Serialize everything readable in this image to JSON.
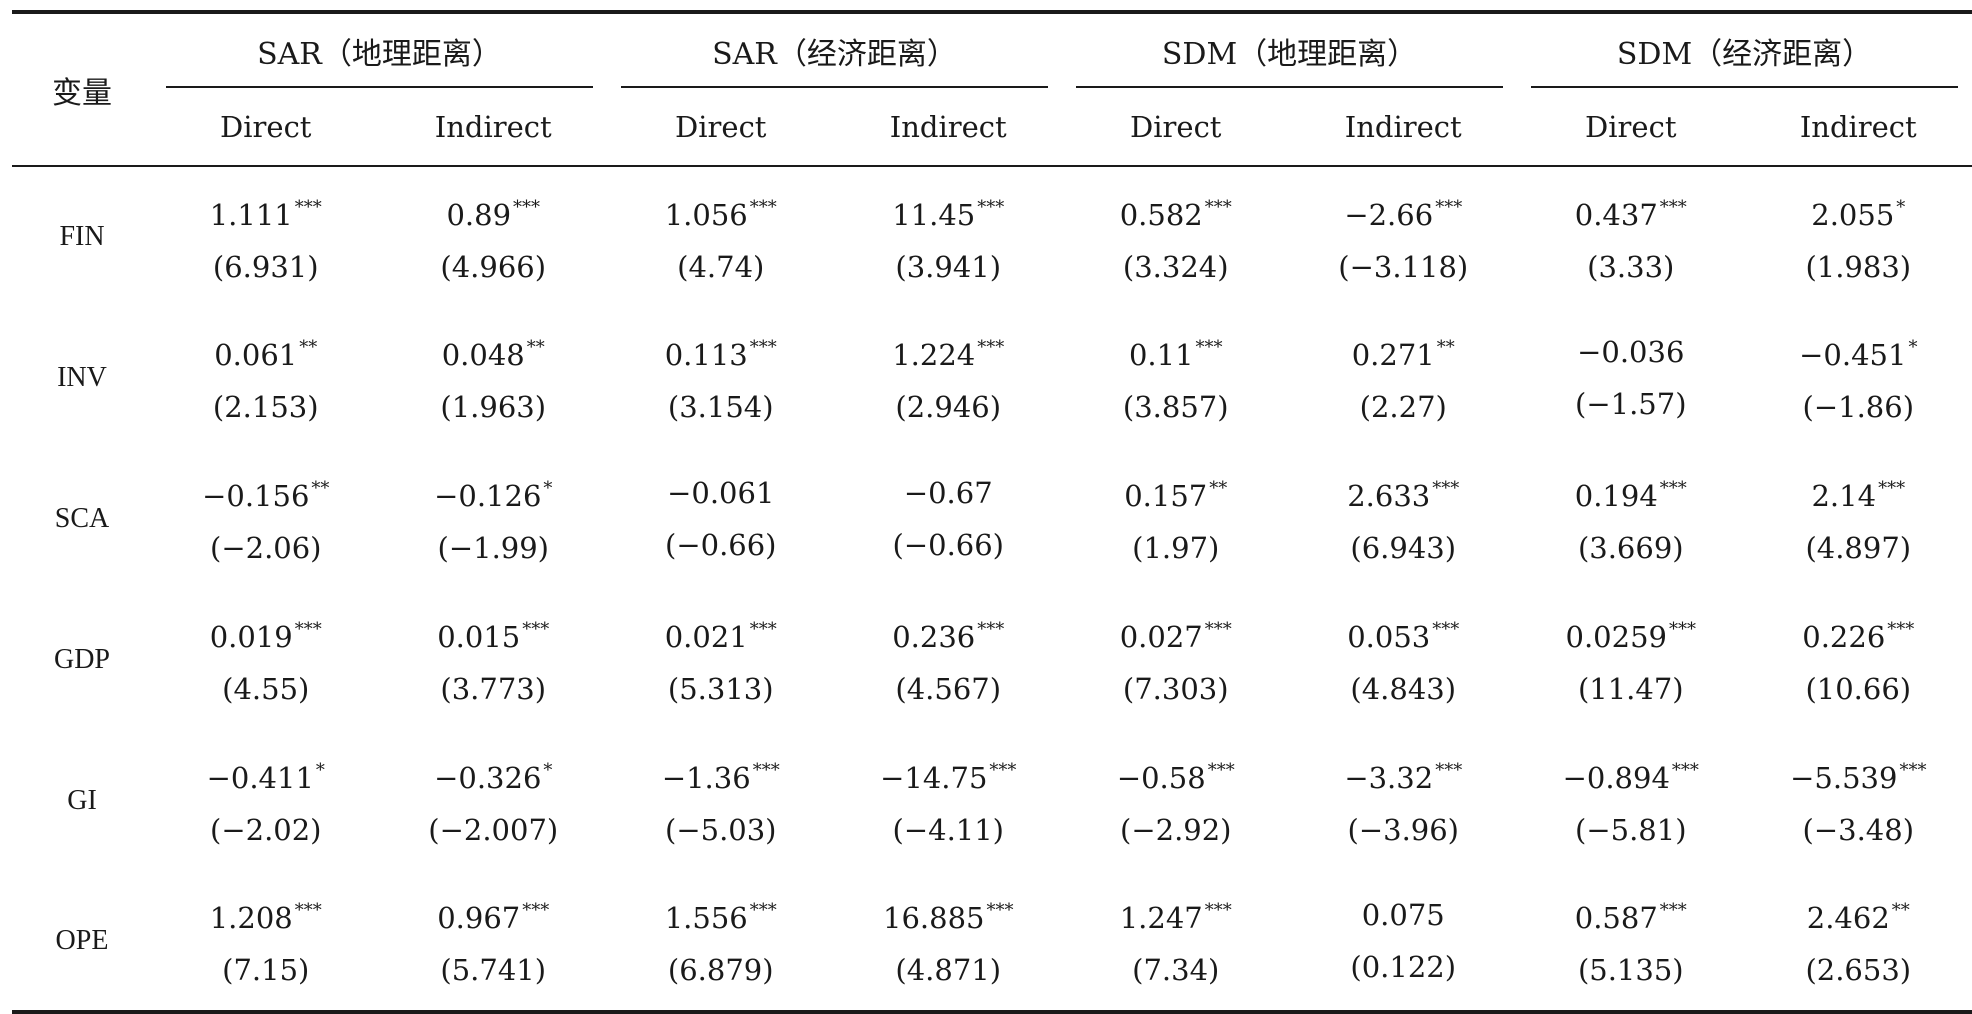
{
  "table": {
    "var_header": "变量",
    "groups": [
      "SAR（地理距离）",
      "SAR（经济距离）",
      "SDM（地理距离）",
      "SDM（经济距离）"
    ],
    "subheaders": [
      "Direct",
      "Indirect",
      "Direct",
      "Indirect",
      "Direct",
      "Indirect",
      "Direct",
      "Indirect"
    ],
    "rows": [
      {
        "var": "FIN",
        "cells": [
          {
            "coef": "1.111",
            "stars": "***",
            "t": "(6.931)"
          },
          {
            "coef": "0.89",
            "stars": "***",
            "t": "(4.966)"
          },
          {
            "coef": "1.056",
            "stars": "***",
            "t": "(4.74)"
          },
          {
            "coef": "11.45",
            "stars": "***",
            "t": "(3.941)"
          },
          {
            "coef": "0.582",
            "stars": "***",
            "t": "(3.324)"
          },
          {
            "coef": "−2.66",
            "stars": "***",
            "t": "(−3.118)"
          },
          {
            "coef": "0.437",
            "stars": "***",
            "t": "(3.33)"
          },
          {
            "coef": "2.055",
            "stars": "*",
            "t": "(1.983)"
          }
        ]
      },
      {
        "var": "INV",
        "cells": [
          {
            "coef": "0.061",
            "stars": "**",
            "t": "(2.153)"
          },
          {
            "coef": "0.048",
            "stars": "**",
            "t": "(1.963)"
          },
          {
            "coef": "0.113",
            "stars": "***",
            "t": "(3.154)"
          },
          {
            "coef": "1.224",
            "stars": "***",
            "t": "(2.946)"
          },
          {
            "coef": "0.11",
            "stars": "***",
            "t": "(3.857)"
          },
          {
            "coef": "0.271",
            "stars": "**",
            "t": "(2.27)"
          },
          {
            "coef": "−0.036",
            "stars": "",
            "t": "(−1.57)"
          },
          {
            "coef": "−0.451",
            "stars": "*",
            "t": "(−1.86)"
          }
        ]
      },
      {
        "var": "SCA",
        "cells": [
          {
            "coef": "−0.156",
            "stars": "**",
            "t": "(−2.06)"
          },
          {
            "coef": "−0.126",
            "stars": "*",
            "t": "(−1.99)"
          },
          {
            "coef": "−0.061",
            "stars": "",
            "t": "(−0.66)"
          },
          {
            "coef": "−0.67",
            "stars": "",
            "t": "(−0.66)"
          },
          {
            "coef": "0.157",
            "stars": "**",
            "t": "(1.97)"
          },
          {
            "coef": "2.633",
            "stars": "***",
            "t": "(6.943)"
          },
          {
            "coef": "0.194",
            "stars": "***",
            "t": "(3.669)"
          },
          {
            "coef": "2.14",
            "stars": "***",
            "t": "(4.897)"
          }
        ]
      },
      {
        "var": "GDP",
        "cells": [
          {
            "coef": "0.019",
            "stars": "***",
            "t": "(4.55)"
          },
          {
            "coef": "0.015",
            "stars": "***",
            "t": "(3.773)"
          },
          {
            "coef": "0.021",
            "stars": "***",
            "t": "(5.313)"
          },
          {
            "coef": "0.236",
            "stars": "***",
            "t": "(4.567)"
          },
          {
            "coef": "0.027",
            "stars": "***",
            "t": "(7.303)"
          },
          {
            "coef": "0.053",
            "stars": "***",
            "t": "(4.843)"
          },
          {
            "coef": "0.0259",
            "stars": "***",
            "t": "(11.47)"
          },
          {
            "coef": "0.226",
            "stars": "***",
            "t": "(10.66)"
          }
        ]
      },
      {
        "var": "GI",
        "cells": [
          {
            "coef": "−0.411",
            "stars": "*",
            "t": "(−2.02)"
          },
          {
            "coef": "−0.326",
            "stars": "*",
            "t": "(−2.007)"
          },
          {
            "coef": "−1.36",
            "stars": "***",
            "t": "(−5.03)"
          },
          {
            "coef": "−14.75",
            "stars": "***",
            "t": "(−4.11)"
          },
          {
            "coef": "−0.58",
            "stars": "***",
            "t": "(−2.92)"
          },
          {
            "coef": "−3.32",
            "stars": "***",
            "t": "(−3.96)"
          },
          {
            "coef": "−0.894",
            "stars": "***",
            "t": "(−5.81)"
          },
          {
            "coef": "−5.539",
            "stars": "***",
            "t": "(−3.48)"
          }
        ]
      },
      {
        "var": "OPE",
        "cells": [
          {
            "coef": "1.208",
            "stars": "***",
            "t": "(7.15)"
          },
          {
            "coef": "0.967",
            "stars": "***",
            "t": "(5.741)"
          },
          {
            "coef": "1.556",
            "stars": "***",
            "t": "(6.879)"
          },
          {
            "coef": "16.885",
            "stars": "***",
            "t": "(4.871)"
          },
          {
            "coef": "1.247",
            "stars": "***",
            "t": "(7.34)"
          },
          {
            "coef": "0.075",
            "stars": "",
            "t": "(0.122)"
          },
          {
            "coef": "0.587",
            "stars": "***",
            "t": "(5.135)"
          },
          {
            "coef": "2.462",
            "stars": "**",
            "t": "(2.653)"
          }
        ]
      }
    ]
  }
}
